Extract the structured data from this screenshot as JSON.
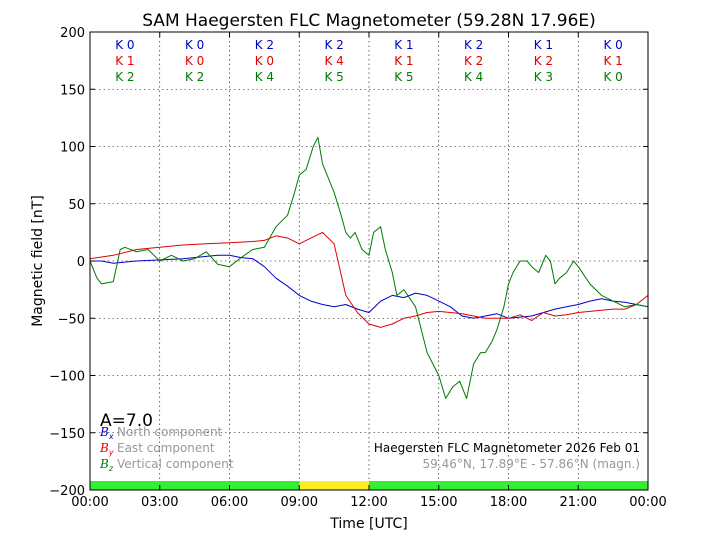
{
  "chart_data": {
    "type": "line",
    "title": "SAM Haegersten FLC Magnetometer (59.28N 17.96E)",
    "xlabel": "Time [UTC]",
    "ylabel": "Magnetic field [nT]",
    "xlim": [
      0,
      24
    ],
    "ylim": [
      -200,
      200
    ],
    "x_ticks": [
      "00:00",
      "03:00",
      "06:00",
      "09:00",
      "12:00",
      "15:00",
      "18:00",
      "21:00",
      "00:00"
    ],
    "y_ticks": [
      200,
      150,
      100,
      50,
      0,
      -50,
      -100,
      -150,
      -200
    ],
    "y_tick_labels": [
      "200",
      "150",
      "100",
      "50",
      "0",
      "−50",
      "−100",
      "−150",
      "−200"
    ],
    "grid": true,
    "k_index": {
      "rows": [
        {
          "label": "K",
          "color": "#0000cc",
          "values": [
            0,
            0,
            2,
            2,
            1,
            2,
            1,
            0
          ]
        },
        {
          "label": "K",
          "color": "#e00000",
          "values": [
            1,
            0,
            0,
            4,
            1,
            2,
            2,
            1
          ]
        },
        {
          "label": "K",
          "color": "#007a00",
          "values": [
            2,
            2,
            4,
            5,
            5,
            4,
            3,
            0
          ]
        }
      ]
    },
    "a_index": "A=7.0",
    "legend": [
      {
        "symbol": "B",
        "sub": "x",
        "label": "North component",
        "color": "#0000cc"
      },
      {
        "symbol": "B",
        "sub": "y",
        "label": "East component",
        "color": "#e00000"
      },
      {
        "symbol": "B",
        "sub": "z",
        "label": "Vertical component",
        "color": "#007a00"
      }
    ],
    "station_note": "Haegersten FLC Magnetometer 2026 Feb 01",
    "coord_note": "59.46°N, 17.89°E - 57.86°N (magn.)",
    "activity_bar": [
      {
        "start": 0,
        "end": 9,
        "color": "#33ee33"
      },
      {
        "start": 9,
        "end": 12,
        "color": "#ffee22"
      },
      {
        "start": 12,
        "end": 24,
        "color": "#33ee33"
      }
    ],
    "series": [
      {
        "name": "Bx North",
        "color": "#0000cc",
        "x": [
          0,
          0.5,
          1,
          1.5,
          2,
          3,
          4,
          5,
          5.5,
          6,
          6.5,
          7,
          7.5,
          8,
          8.5,
          9,
          9.5,
          10,
          10.5,
          11,
          11.5,
          12,
          12.5,
          13,
          13.5,
          14,
          14.5,
          15,
          15.5,
          16,
          16.5,
          17,
          17.5,
          18,
          18.5,
          19,
          19.5,
          20,
          20.5,
          21,
          21.5,
          22,
          22.5,
          23,
          23.5,
          24
        ],
        "y": [
          0,
          0,
          -2,
          -1,
          0,
          1,
          2,
          4,
          5,
          5,
          3,
          2,
          -5,
          -15,
          -22,
          -30,
          -35,
          -38,
          -40,
          -38,
          -42,
          -45,
          -35,
          -30,
          -32,
          -28,
          -30,
          -35,
          -40,
          -48,
          -50,
          -48,
          -46,
          -50,
          -49,
          -48,
          -45,
          -42,
          -40,
          -38,
          -35,
          -33,
          -35,
          -36,
          -38,
          -40
        ]
      },
      {
        "name": "By East",
        "color": "#e00000",
        "x": [
          0,
          1,
          2,
          3,
          4,
          5,
          6,
          7,
          7.5,
          8,
          8.5,
          9,
          9.5,
          10,
          10.5,
          11,
          11.5,
          12,
          12.5,
          13,
          13.5,
          14,
          14.5,
          15,
          15.5,
          16,
          16.5,
          17,
          17.5,
          18,
          18.5,
          19,
          19.5,
          20,
          20.5,
          21,
          21.5,
          22,
          22.5,
          23,
          23.5,
          24
        ],
        "y": [
          2,
          5,
          10,
          12,
          14,
          15,
          16,
          17,
          18,
          22,
          20,
          15,
          20,
          25,
          15,
          -30,
          -45,
          -55,
          -58,
          -55,
          -50,
          -48,
          -45,
          -44,
          -45,
          -46,
          -48,
          -50,
          -50,
          -50,
          -47,
          -52,
          -45,
          -48,
          -47,
          -45,
          -44,
          -43,
          -42,
          -42,
          -38,
          -30
        ]
      },
      {
        "name": "Bz Vertical",
        "color": "#007a00",
        "x": [
          0,
          0.3,
          0.5,
          1,
          1.3,
          1.5,
          2,
          2.5,
          3,
          3.5,
          4,
          4.5,
          5,
          5.5,
          6,
          6.5,
          7,
          7.5,
          8,
          8.5,
          8.8,
          9,
          9.3,
          9.6,
          9.8,
          10,
          10.2,
          10.5,
          10.8,
          11,
          11.2,
          11.4,
          11.5,
          11.7,
          12,
          12.2,
          12.5,
          12.7,
          13,
          13.2,
          13.5,
          14,
          14.5,
          15,
          15.3,
          15.6,
          15.9,
          16.2,
          16.5,
          16.8,
          17,
          17.3,
          17.5,
          17.8,
          18,
          18.2,
          18.5,
          18.8,
          19,
          19.3,
          19.6,
          19.8,
          20,
          20.2,
          20.5,
          20.8,
          21,
          21.5,
          22,
          22.5,
          23,
          23.5,
          24
        ],
        "y": [
          0,
          -15,
          -20,
          -18,
          10,
          12,
          8,
          10,
          0,
          5,
          0,
          2,
          8,
          -3,
          -5,
          3,
          10,
          12,
          30,
          40,
          60,
          75,
          80,
          100,
          108,
          85,
          75,
          60,
          40,
          25,
          20,
          25,
          20,
          10,
          5,
          25,
          30,
          10,
          -10,
          -30,
          -25,
          -40,
          -80,
          -100,
          -120,
          -110,
          -105,
          -120,
          -90,
          -80,
          -80,
          -70,
          -60,
          -40,
          -20,
          -10,
          0,
          0,
          -5,
          -10,
          5,
          0,
          -20,
          -15,
          -10,
          0,
          -5,
          -20,
          -30,
          -35,
          -40,
          -38,
          -40
        ]
      }
    ]
  }
}
